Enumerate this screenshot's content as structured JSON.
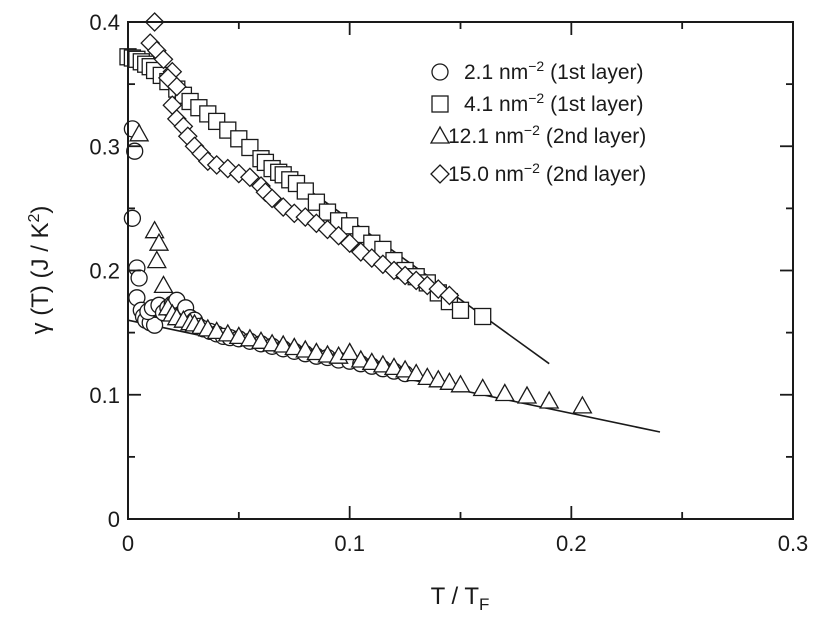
{
  "chart_data": {
    "type": "scatter",
    "xlabel": "T / T",
    "xlabel_sub": "F",
    "ylabel": "γ (T)  (J / K",
    "ylabel_sup": "2",
    "ylabel_close": ")",
    "xlim": [
      0,
      0.3
    ],
    "ylim": [
      0,
      0.4
    ],
    "x_ticks": [
      0,
      0.1,
      0.2,
      0.3
    ],
    "x_tick_labels": [
      "0",
      "0.1",
      "0.2",
      "0.3"
    ],
    "y_ticks": [
      0,
      0.1,
      0.2,
      0.3,
      0.4
    ],
    "y_tick_labels": [
      "0",
      "0.1",
      "0.2",
      "0.3",
      "0.4"
    ],
    "legend_position": "top-right",
    "series": [
      {
        "marker": "circle",
        "legend_value": "2.1 nm",
        "legend_sup": "−2",
        "legend_note": "(1st layer)",
        "points": [
          [
            0.002,
            0.314
          ],
          [
            0.003,
            0.296
          ],
          [
            0.002,
            0.242
          ],
          [
            0.004,
            0.202
          ],
          [
            0.005,
            0.194
          ],
          [
            0.004,
            0.178
          ],
          [
            0.006,
            0.168
          ],
          [
            0.007,
            0.163
          ],
          [
            0.008,
            0.16
          ],
          [
            0.01,
            0.158
          ],
          [
            0.012,
            0.156
          ],
          [
            0.009,
            0.167
          ],
          [
            0.011,
            0.17
          ],
          [
            0.014,
            0.172
          ],
          [
            0.016,
            0.166
          ],
          [
            0.018,
            0.17
          ],
          [
            0.02,
            0.173
          ],
          [
            0.022,
            0.176
          ],
          [
            0.024,
            0.165
          ],
          [
            0.026,
            0.17
          ],
          [
            0.028,
            0.162
          ],
          [
            0.03,
            0.16
          ],
          [
            0.032,
            0.155
          ],
          [
            0.034,
            0.153
          ],
          [
            0.037,
            0.151
          ],
          [
            0.04,
            0.149
          ],
          [
            0.043,
            0.147
          ],
          [
            0.046,
            0.146
          ],
          [
            0.05,
            0.145
          ],
          [
            0.055,
            0.143
          ],
          [
            0.06,
            0.141
          ],
          [
            0.065,
            0.139
          ],
          [
            0.07,
            0.137
          ],
          [
            0.075,
            0.135
          ],
          [
            0.08,
            0.133
          ],
          [
            0.085,
            0.131
          ],
          [
            0.09,
            0.13
          ],
          [
            0.095,
            0.128
          ],
          [
            0.1,
            0.127
          ],
          [
            0.105,
            0.125
          ],
          [
            0.11,
            0.123
          ],
          [
            0.115,
            0.121
          ],
          [
            0.12,
            0.119
          ],
          [
            0.125,
            0.117
          ]
        ]
      },
      {
        "marker": "square",
        "legend_value": "4.1 nm",
        "legend_sup": "−2",
        "legend_note": "(1st layer)",
        "points": [
          [
            0.0,
            0.372
          ],
          [
            0.002,
            0.371
          ],
          [
            0.004,
            0.37
          ],
          [
            0.006,
            0.368
          ],
          [
            0.008,
            0.366
          ],
          [
            0.01,
            0.364
          ],
          [
            0.012,
            0.361
          ],
          [
            0.015,
            0.357
          ],
          [
            0.018,
            0.352
          ],
          [
            0.022,
            0.346
          ],
          [
            0.025,
            0.341
          ],
          [
            0.028,
            0.336
          ],
          [
            0.032,
            0.331
          ],
          [
            0.036,
            0.326
          ],
          [
            0.04,
            0.32
          ],
          [
            0.045,
            0.313
          ],
          [
            0.05,
            0.306
          ],
          [
            0.055,
            0.299
          ],
          [
            0.06,
            0.29
          ],
          [
            0.062,
            0.287
          ],
          [
            0.065,
            0.282
          ],
          [
            0.068,
            0.279
          ],
          [
            0.07,
            0.277
          ],
          [
            0.073,
            0.273
          ],
          [
            0.076,
            0.27
          ],
          [
            0.08,
            0.264
          ],
          [
            0.085,
            0.255
          ],
          [
            0.09,
            0.247
          ],
          [
            0.095,
            0.24
          ],
          [
            0.1,
            0.236
          ],
          [
            0.105,
            0.229
          ],
          [
            0.11,
            0.222
          ],
          [
            0.115,
            0.217
          ],
          [
            0.12,
            0.208
          ],
          [
            0.125,
            0.2
          ],
          [
            0.13,
            0.195
          ],
          [
            0.135,
            0.19
          ],
          [
            0.14,
            0.182
          ],
          [
            0.145,
            0.175
          ],
          [
            0.15,
            0.168
          ],
          [
            0.16,
            0.163
          ]
        ]
      },
      {
        "marker": "triangle",
        "legend_value": "12.1 nm",
        "legend_sup": "−2",
        "legend_note": "(2nd layer)",
        "points": [
          [
            0.005,
            0.31
          ],
          [
            0.012,
            0.232
          ],
          [
            0.014,
            0.222
          ],
          [
            0.013,
            0.208
          ],
          [
            0.016,
            0.188
          ],
          [
            0.018,
            0.17
          ],
          [
            0.02,
            0.165
          ],
          [
            0.022,
            0.162
          ],
          [
            0.025,
            0.16
          ],
          [
            0.028,
            0.158
          ],
          [
            0.03,
            0.157
          ],
          [
            0.033,
            0.155
          ],
          [
            0.036,
            0.153
          ],
          [
            0.04,
            0.151
          ],
          [
            0.045,
            0.149
          ],
          [
            0.05,
            0.147
          ],
          [
            0.055,
            0.145
          ],
          [
            0.06,
            0.143
          ],
          [
            0.065,
            0.141
          ],
          [
            0.07,
            0.14
          ],
          [
            0.075,
            0.138
          ],
          [
            0.08,
            0.136
          ],
          [
            0.085,
            0.134
          ],
          [
            0.09,
            0.132
          ],
          [
            0.095,
            0.131
          ],
          [
            0.1,
            0.134
          ],
          [
            0.105,
            0.128
          ],
          [
            0.11,
            0.126
          ],
          [
            0.115,
            0.124
          ],
          [
            0.12,
            0.122
          ],
          [
            0.125,
            0.12
          ],
          [
            0.13,
            0.117
          ],
          [
            0.135,
            0.114
          ],
          [
            0.14,
            0.112
          ],
          [
            0.145,
            0.11
          ],
          [
            0.15,
            0.108
          ],
          [
            0.16,
            0.105
          ],
          [
            0.17,
            0.101
          ],
          [
            0.18,
            0.099
          ],
          [
            0.19,
            0.095
          ],
          [
            0.205,
            0.091
          ]
        ]
      },
      {
        "marker": "diamond",
        "legend_value": "15.0 nm",
        "legend_sup": "−2",
        "legend_note": "(2nd layer)",
        "points": [
          [
            0.012,
            0.4
          ],
          [
            0.01,
            0.383
          ],
          [
            0.013,
            0.377
          ],
          [
            0.016,
            0.37
          ],
          [
            0.02,
            0.36
          ],
          [
            0.018,
            0.355
          ],
          [
            0.022,
            0.348
          ],
          [
            0.02,
            0.333
          ],
          [
            0.022,
            0.322
          ],
          [
            0.025,
            0.316
          ],
          [
            0.027,
            0.308
          ],
          [
            0.03,
            0.3
          ],
          [
            0.033,
            0.294
          ],
          [
            0.036,
            0.288
          ],
          [
            0.04,
            0.285
          ],
          [
            0.045,
            0.282
          ],
          [
            0.05,
            0.278
          ],
          [
            0.055,
            0.275
          ],
          [
            0.06,
            0.268
          ],
          [
            0.062,
            0.263
          ],
          [
            0.065,
            0.258
          ],
          [
            0.07,
            0.251
          ],
          [
            0.075,
            0.246
          ],
          [
            0.08,
            0.243
          ],
          [
            0.085,
            0.238
          ],
          [
            0.09,
            0.233
          ],
          [
            0.095,
            0.228
          ],
          [
            0.1,
            0.222
          ],
          [
            0.105,
            0.215
          ],
          [
            0.11,
            0.21
          ],
          [
            0.115,
            0.205
          ],
          [
            0.12,
            0.2
          ],
          [
            0.125,
            0.196
          ],
          [
            0.13,
            0.192
          ],
          [
            0.135,
            0.188
          ],
          [
            0.14,
            0.185
          ],
          [
            0.145,
            0.18
          ]
        ]
      }
    ],
    "fit_lines": [
      {
        "from": [
          0.0,
          0.37
        ],
        "to": [
          0.19,
          0.125
        ]
      },
      {
        "from": [
          0.0,
          0.16
        ],
        "to": [
          0.24,
          0.07
        ]
      }
    ]
  }
}
